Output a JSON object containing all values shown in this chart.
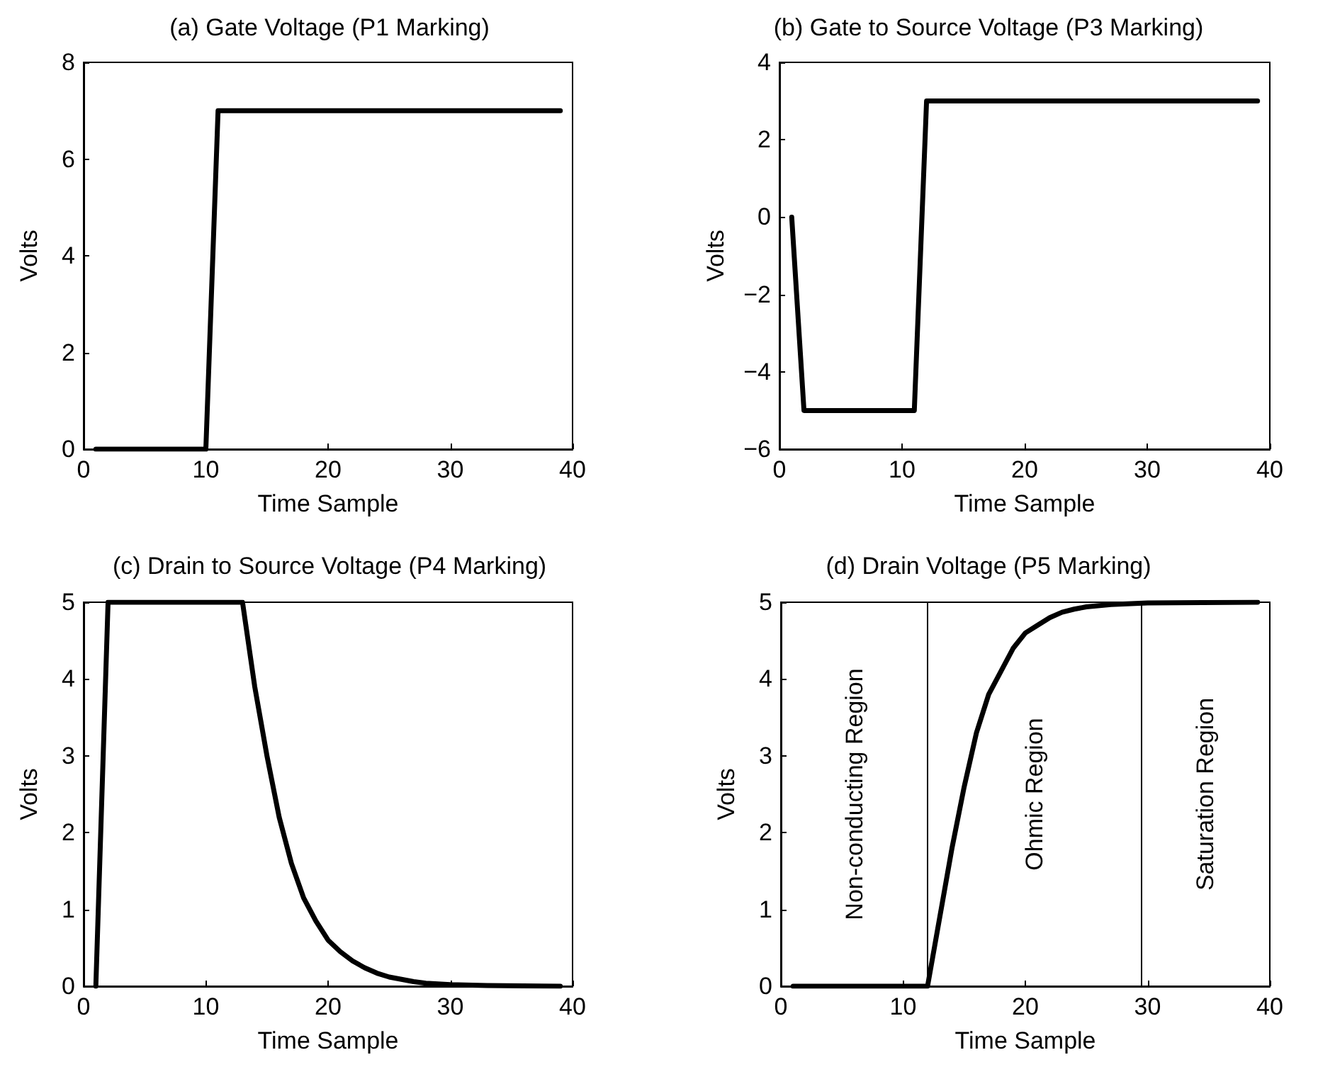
{
  "chart_data": [
    {
      "type": "line",
      "title": "(a) Gate Voltage (P1 Marking)",
      "xlabel": "Time Sample",
      "ylabel": "Volts",
      "x": [
        1,
        10,
        11,
        39
      ],
      "values": [
        0,
        0,
        7,
        7
      ],
      "color": "#000000",
      "marker": "none",
      "line_style": "solid",
      "xlim": [
        0,
        40
      ],
      "xticks": [
        0,
        10,
        20,
        30,
        40
      ],
      "ylim": [
        0,
        8
      ],
      "yticks": [
        0,
        2,
        4,
        6,
        8
      ]
    },
    {
      "type": "line",
      "title": "(b) Gate to Source Voltage (P3 Marking)",
      "xlabel": "Time Sample",
      "ylabel": "Volts",
      "x": [
        1,
        2,
        11,
        12,
        39
      ],
      "values": [
        0,
        -5,
        -5,
        3,
        3
      ],
      "color": "#000000",
      "marker": "none",
      "line_style": "solid",
      "xlim": [
        0,
        40
      ],
      "xticks": [
        0,
        10,
        20,
        30,
        40
      ],
      "ylim": [
        -6,
        4
      ],
      "yticks": [
        -6,
        -4,
        -2,
        0,
        2,
        4
      ]
    },
    {
      "type": "line",
      "title": "(c) Drain to Source Voltage (P4 Marking)",
      "xlabel": "Time Sample",
      "ylabel": "Volts",
      "x": [
        1,
        2,
        13,
        14,
        15,
        16,
        17,
        18,
        19,
        20,
        21,
        22,
        23,
        24,
        25,
        26,
        27,
        28,
        30,
        33,
        39
      ],
      "values": [
        0,
        5,
        5,
        3.9,
        3.0,
        2.2,
        1.6,
        1.15,
        0.85,
        0.6,
        0.45,
        0.33,
        0.24,
        0.17,
        0.12,
        0.09,
        0.06,
        0.04,
        0.02,
        0.01,
        0
      ],
      "color": "#000000",
      "marker": "none",
      "line_style": "solid",
      "xlim": [
        0,
        40
      ],
      "xticks": [
        0,
        10,
        20,
        30,
        40
      ],
      "ylim": [
        0,
        5
      ],
      "yticks": [
        0,
        1,
        2,
        3,
        4,
        5
      ]
    },
    {
      "type": "line",
      "title": "(d) Drain Voltage (P5 Marking)",
      "xlabel": "Time Sample",
      "ylabel": "Volts",
      "x": [
        1,
        12,
        13,
        14,
        15,
        16,
        17,
        18,
        19,
        20,
        21,
        22,
        23,
        24,
        25,
        27,
        30,
        39
      ],
      "values": [
        0,
        0,
        0.9,
        1.8,
        2.6,
        3.3,
        3.8,
        4.1,
        4.4,
        4.6,
        4.7,
        4.8,
        4.87,
        4.91,
        4.94,
        4.97,
        4.99,
        5
      ],
      "color": "#000000",
      "marker": "none",
      "line_style": "solid",
      "xlim": [
        0,
        40
      ],
      "xticks": [
        0,
        10,
        20,
        30,
        40
      ],
      "ylim": [
        0,
        5
      ],
      "yticks": [
        0,
        1,
        2,
        3,
        4,
        5
      ],
      "ref_lines": [
        {
          "axis": "x",
          "value": 12,
          "color": "#000000"
        },
        {
          "axis": "x",
          "value": 29.5,
          "color": "#000000"
        }
      ],
      "annotations": [
        "Non-conducting Region",
        "Ohmic Region",
        "Saturation Region"
      ]
    }
  ]
}
